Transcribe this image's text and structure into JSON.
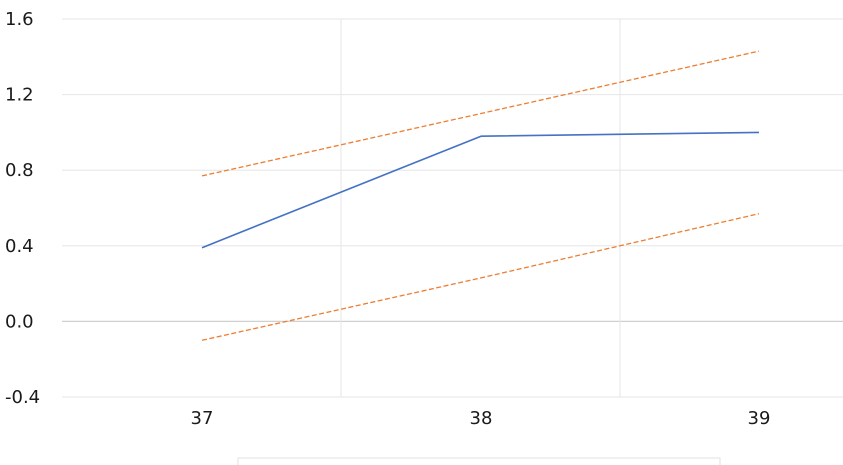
{
  "chart_data": {
    "type": "line",
    "title": "",
    "xlabel": "",
    "ylabel": "",
    "categories": [
      "37",
      "38",
      "39"
    ],
    "x_tick_labels": [
      "37",
      "38",
      "39"
    ],
    "y_tick_labels": [
      "1.6",
      "1.2",
      "0.8",
      "0.4",
      "0.0",
      "-0.4"
    ],
    "y_ticks": [
      1.6,
      1.2,
      0.8,
      0.4,
      0.0,
      -0.4
    ],
    "ylim": [
      -0.4,
      1.6
    ],
    "grid": true,
    "series": [
      {
        "values": [
          0.39,
          0.98,
          1.0
        ],
        "color": "#4472c4",
        "line_style": "solid"
      },
      {
        "values": [
          0.77,
          1.1,
          1.43
        ],
        "color": "#ed7d31",
        "line_style": "dashed"
      },
      {
        "values": [
          -0.1,
          0.23,
          0.57
        ],
        "color": "#ed7d31",
        "line_style": "dashed"
      }
    ],
    "legend": {
      "placement": "bottom",
      "entries": []
    }
  }
}
